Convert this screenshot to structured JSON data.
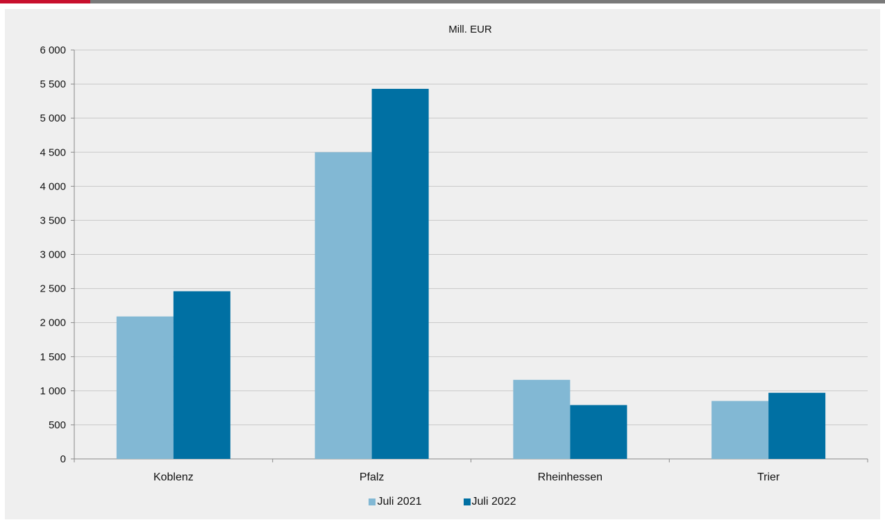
{
  "colors": {
    "accent": "#c8102e",
    "topbar": "#7a7a7a",
    "background": "#efefef",
    "series1": "#82b8d4",
    "series2": "#0070a3",
    "grid": "#c8c8c8",
    "axis": "#888888"
  },
  "chart_data": {
    "type": "bar",
    "unit_label": "Mill. EUR",
    "categories": [
      "Koblenz",
      "Pfalz",
      "Rheinhessen",
      "Trier"
    ],
    "series": [
      {
        "name": "Juli 2021",
        "color": "#82b8d4",
        "values": [
          2090,
          4500,
          1160,
          850
        ]
      },
      {
        "name": "Juli 2022",
        "color": "#0070a3",
        "values": [
          2460,
          5430,
          790,
          970
        ]
      }
    ],
    "ylim": [
      0,
      6000
    ],
    "yticks": [
      0,
      500,
      1000,
      1500,
      2000,
      2500,
      3000,
      3500,
      4000,
      4500,
      5000,
      5500,
      6000
    ],
    "ytick_labels": [
      "0",
      "500",
      "1 000",
      "1 500",
      "2 000",
      "2 500",
      "3 000",
      "3 500",
      "4 000",
      "4 500",
      "5 000",
      "5 500",
      "6 000"
    ],
    "grid": true,
    "legend_position": "bottom"
  }
}
